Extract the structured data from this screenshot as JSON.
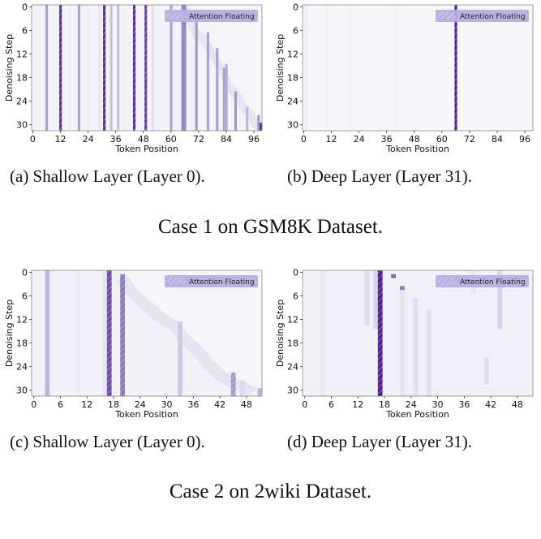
{
  "colors": {
    "low": "#fcfbfd",
    "high": "#3f007d",
    "legend_patch": "#b8aee0",
    "hatch": "#ffffff"
  },
  "chart_data": [
    {
      "type": "heatmap",
      "colormap": "Purples",
      "xlabel": "Token Position",
      "ylabel": "Denoising Step",
      "n_tokens": 100,
      "n_steps": 32,
      "xticks": [
        0,
        12,
        24,
        36,
        48,
        60,
        72,
        84,
        96
      ],
      "yticks": [
        0,
        6,
        12,
        18,
        24,
        30
      ],
      "legend": {
        "label": "Attention Floating",
        "placement": "top-right"
      },
      "background": 0.04,
      "columns": [
        {
          "token": 6,
          "from": 0,
          "to": 31,
          "v": 0.45,
          "floating": false
        },
        {
          "token": 12,
          "from": 0,
          "to": 31,
          "v": 0.85,
          "floating": true
        },
        {
          "token": 16,
          "from": 0,
          "to": 31,
          "v": 0.08,
          "floating": false
        },
        {
          "token": 20,
          "from": 0,
          "to": 31,
          "v": 0.45,
          "floating": false
        },
        {
          "token": 24,
          "from": 0,
          "to": 31,
          "v": 0.08,
          "floating": false
        },
        {
          "token": 29,
          "from": 0,
          "to": 31,
          "v": 0.12,
          "floating": false
        },
        {
          "token": 31,
          "from": 0,
          "to": 31,
          "v": 0.85,
          "floating": true
        },
        {
          "token": 34,
          "from": 0,
          "to": 31,
          "v": 0.3,
          "floating": false
        },
        {
          "token": 37,
          "from": 0,
          "to": 31,
          "v": 0.3,
          "floating": false
        },
        {
          "token": 44,
          "from": 0,
          "to": 31,
          "v": 0.85,
          "floating": true
        },
        {
          "token": 49,
          "from": 0,
          "to": 31,
          "v": 0.8,
          "floating": true
        },
        {
          "token": 52,
          "from": 0,
          "to": 31,
          "v": 0.15,
          "floating": false
        },
        {
          "token": 60,
          "from": 0,
          "to": 31,
          "v": 0.45,
          "floating": false
        },
        {
          "token": 65,
          "from": 0,
          "to": 31,
          "v": 0.55,
          "floating": false
        },
        {
          "token": 66,
          "from": 0,
          "to": 31,
          "v": 0.55,
          "floating": false
        },
        {
          "token": 71,
          "from": 4,
          "to": 31,
          "v": 0.5,
          "floating": false
        },
        {
          "token": 76,
          "from": 7,
          "to": 31,
          "v": 0.45,
          "floating": false
        },
        {
          "token": 80,
          "from": 11,
          "to": 31,
          "v": 0.45,
          "floating": false
        },
        {
          "token": 83,
          "from": 16,
          "to": 31,
          "v": 0.45,
          "floating": false
        },
        {
          "token": 84,
          "from": 15,
          "to": 31,
          "v": 0.4,
          "floating": false
        },
        {
          "token": 88,
          "from": 22,
          "to": 31,
          "v": 0.5,
          "floating": false
        },
        {
          "token": 93,
          "from": 26,
          "to": 31,
          "v": 0.35,
          "floating": false
        },
        {
          "token": 98,
          "from": 28,
          "to": 31,
          "v": 0.5,
          "floating": false
        },
        {
          "token": 99,
          "from": 30,
          "to": 31,
          "v": 0.85,
          "floating": false
        }
      ],
      "frontier": [
        [
          68,
          0
        ],
        [
          72,
          6
        ],
        [
          76,
          8
        ],
        [
          80,
          12
        ],
        [
          84,
          16
        ],
        [
          87,
          20
        ],
        [
          90,
          22
        ],
        [
          93,
          25
        ],
        [
          96,
          27
        ],
        [
          99,
          30
        ]
      ]
    },
    {
      "type": "heatmap",
      "colormap": "Purples",
      "xlabel": "Token Position",
      "ylabel": "Denoising Step",
      "n_tokens": 100,
      "n_steps": 32,
      "xticks": [
        0,
        12,
        24,
        36,
        48,
        60,
        72,
        84,
        96
      ],
      "yticks": [
        0,
        6,
        12,
        18,
        24,
        30
      ],
      "legend": {
        "label": "Attention Floating",
        "placement": "top-right"
      },
      "background": 0.03,
      "columns": [
        {
          "token": 1,
          "from": 0,
          "to": 31,
          "v": 0.07,
          "floating": false
        },
        {
          "token": 10,
          "from": 0,
          "to": 31,
          "v": 0.05,
          "floating": false
        },
        {
          "token": 20,
          "from": 0,
          "to": 31,
          "v": 0.05,
          "floating": false
        },
        {
          "token": 40,
          "from": 0,
          "to": 31,
          "v": 0.05,
          "floating": false
        },
        {
          "token": 66,
          "from": 0,
          "to": 31,
          "v": 0.9,
          "floating": true
        }
      ],
      "frontier": []
    },
    {
      "type": "heatmap",
      "colormap": "Purples",
      "xlabel": "Token Position",
      "ylabel": "Denoising Step",
      "n_tokens": 52,
      "n_steps": 32,
      "xticks": [
        0,
        6,
        12,
        18,
        24,
        30,
        36,
        42,
        48
      ],
      "yticks": [
        0,
        6,
        12,
        18,
        24,
        30
      ],
      "legend": {
        "label": "Attention Floating",
        "placement": "top-right"
      },
      "background": 0.05,
      "columns": [
        {
          "token": 3,
          "from": 0,
          "to": 31,
          "v": 0.35,
          "floating": false
        },
        {
          "token": 10,
          "from": 0,
          "to": 31,
          "v": 0.08,
          "floating": false
        },
        {
          "token": 16,
          "from": 0,
          "to": 31,
          "v": 0.12,
          "floating": false
        },
        {
          "token": 17,
          "from": 0,
          "to": 31,
          "v": 0.75,
          "floating": true
        },
        {
          "token": 20,
          "from": 1,
          "to": 31,
          "v": 0.6,
          "floating": true
        },
        {
          "token": 33,
          "from": 13,
          "to": 31,
          "v": 0.25,
          "floating": false
        },
        {
          "token": 45,
          "from": 26,
          "to": 31,
          "v": 0.5,
          "floating": true
        },
        {
          "token": 47,
          "from": 28,
          "to": 31,
          "v": 0.18,
          "floating": false
        },
        {
          "token": 51,
          "from": 30,
          "to": 31,
          "v": 0.35,
          "floating": false
        }
      ],
      "frontier": [
        [
          21,
          1
        ],
        [
          22,
          2
        ],
        [
          24,
          5
        ],
        [
          27,
          8
        ],
        [
          30,
          11
        ],
        [
          33,
          13
        ],
        [
          36,
          17
        ],
        [
          39,
          20
        ],
        [
          41,
          23
        ],
        [
          44,
          26
        ],
        [
          47,
          28
        ],
        [
          51,
          30
        ]
      ]
    },
    {
      "type": "heatmap",
      "colormap": "Purples",
      "xlabel": "Token Position",
      "ylabel": "Denoising Step",
      "n_tokens": 52,
      "n_steps": 32,
      "xticks": [
        0,
        6,
        12,
        18,
        24,
        30,
        36,
        42,
        48
      ],
      "yticks": [
        0,
        6,
        12,
        18,
        24,
        30
      ],
      "legend": {
        "label": "Attention Floating",
        "placement": "top-right"
      },
      "background": 0.06,
      "columns": [
        {
          "token": 4,
          "from": 0,
          "to": 31,
          "v": 0.1,
          "floating": false
        },
        {
          "token": 14,
          "from": 0,
          "to": 13,
          "v": 0.15,
          "floating": false
        },
        {
          "token": 16,
          "from": 0,
          "to": 14,
          "v": 0.2,
          "floating": false
        },
        {
          "token": 17,
          "from": 0,
          "to": 31,
          "v": 0.9,
          "floating": true
        },
        {
          "token": 20,
          "from": 1,
          "to": 1,
          "v": 0.65,
          "floating": false
        },
        {
          "token": 22,
          "from": 4,
          "to": 4,
          "v": 0.6,
          "floating": false
        },
        {
          "token": 22,
          "from": 5,
          "to": 31,
          "v": 0.12,
          "floating": false
        },
        {
          "token": 25,
          "from": 7,
          "to": 31,
          "v": 0.15,
          "floating": false
        },
        {
          "token": 28,
          "from": 10,
          "to": 31,
          "v": 0.15,
          "floating": false
        },
        {
          "token": 38,
          "from": 0,
          "to": 5,
          "v": 0.12,
          "floating": false
        },
        {
          "token": 44,
          "from": 0,
          "to": 14,
          "v": 0.2,
          "floating": false
        },
        {
          "token": 41,
          "from": 22,
          "to": 28,
          "v": 0.15,
          "floating": false
        }
      ],
      "frontier": []
    }
  ],
  "captions": {
    "a": "(a) Shallow Layer (Layer 0).",
    "b": "(b) Deep Layer (Layer 31).",
    "c": "(c) Shallow Layer (Layer 0).",
    "d": "(d) Deep Layer (Layer 31).",
    "case1": "Case 1 on GSM8K Dataset.",
    "case2": "Case 2 on 2wiki Dataset."
  }
}
